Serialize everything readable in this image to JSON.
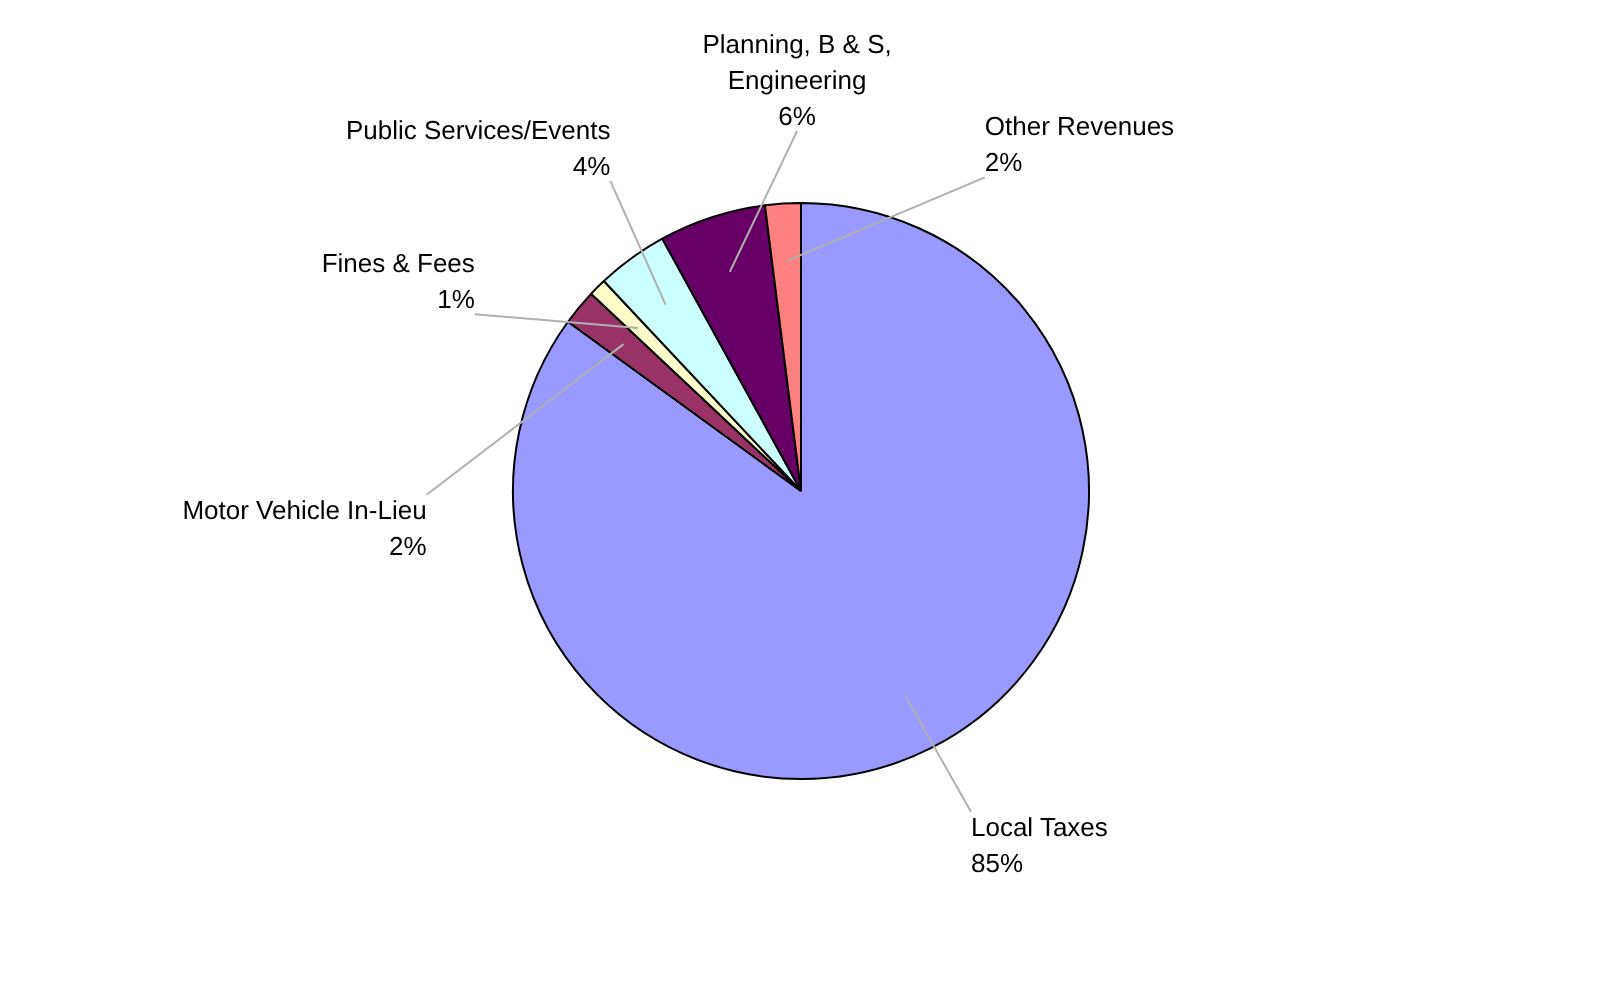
{
  "chart_data": {
    "type": "pie",
    "categories": [
      "Local Taxes",
      "Motor Vehicle In-Lieu",
      "Fines & Fees",
      "Public Services/Events",
      "Planning, B & S,\nEngineering",
      "Other Revenues"
    ],
    "values": [
      85,
      2,
      1,
      4,
      6,
      2
    ],
    "value_labels": [
      "85%",
      "2%",
      "1%",
      "4%",
      "6%",
      "2%"
    ],
    "colors": [
      "#9999ff",
      "#993366",
      "#ffffcc",
      "#ccffff",
      "#660066",
      "#ff8080"
    ]
  }
}
